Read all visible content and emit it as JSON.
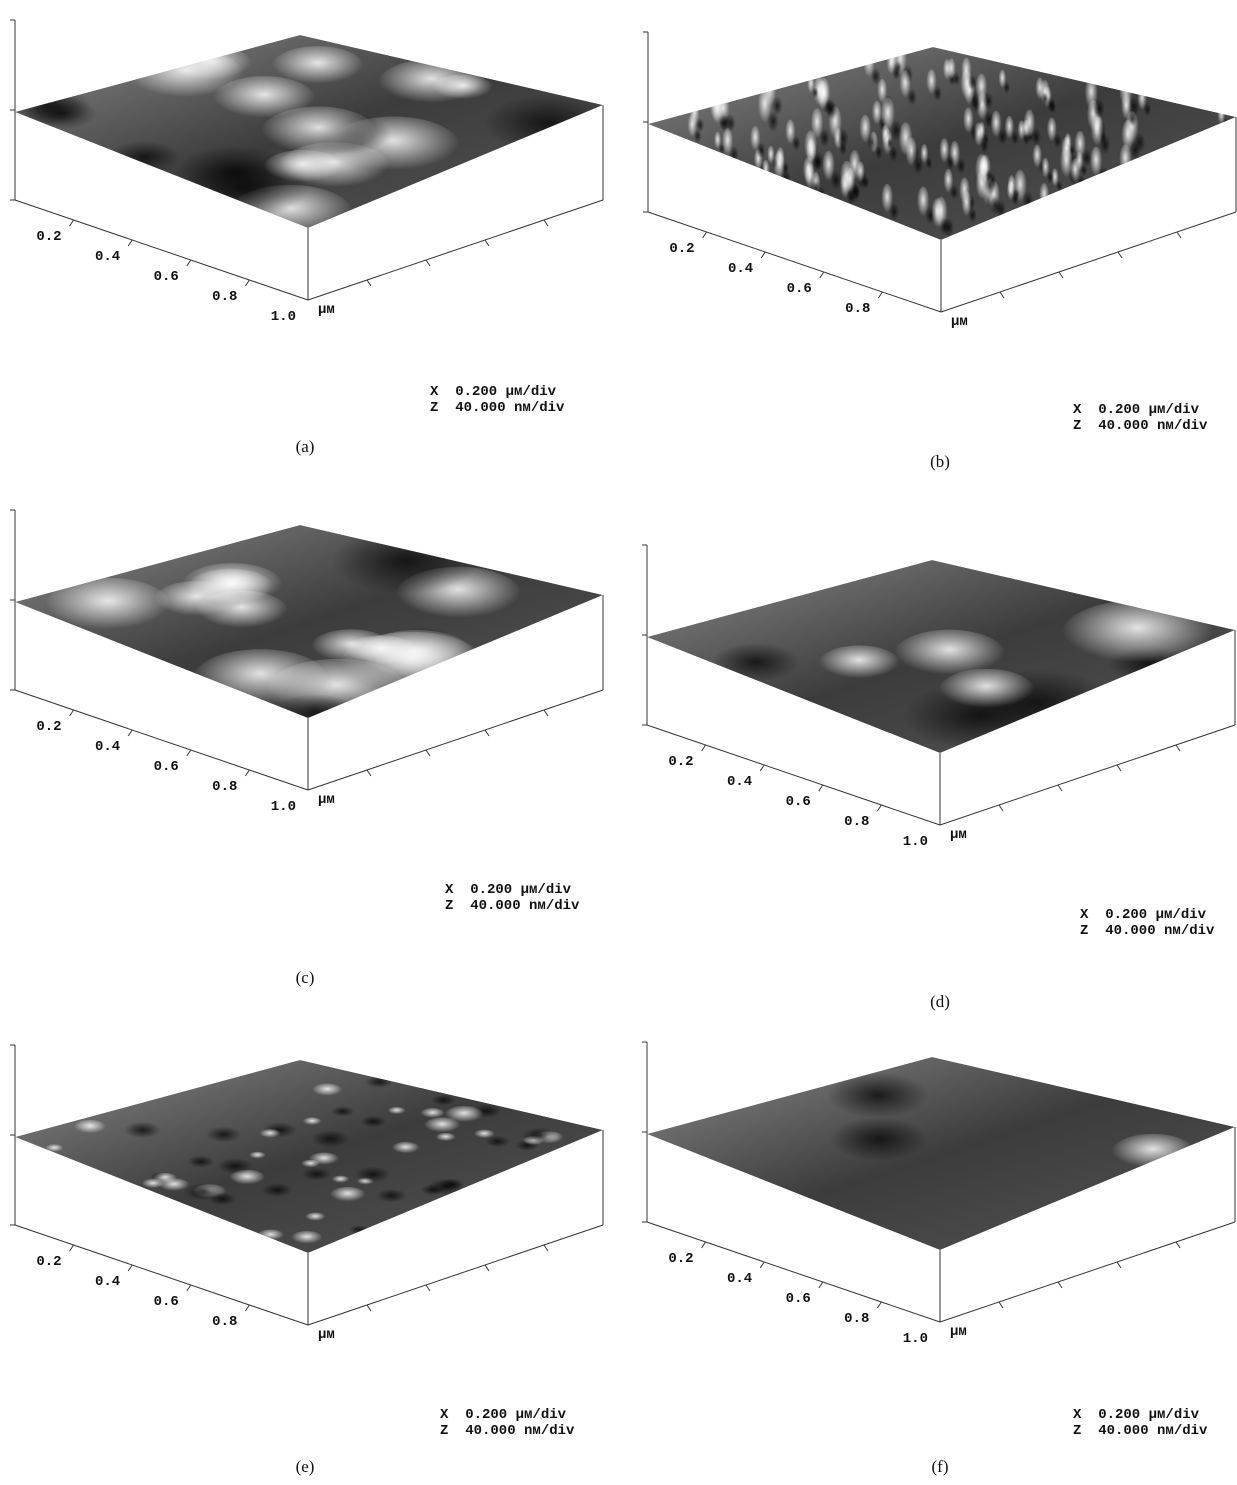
{
  "figure": {
    "panels": [
      {
        "caption": "(a)",
        "tick_labels": [
          "0.2",
          "0.4",
          "0.6",
          "0.8",
          "1.0"
        ],
        "unit": "μм",
        "scale": [
          "X  0.200 μм/div",
          "Z  40.000 nм/div"
        ]
      },
      {
        "caption": "(b)",
        "tick_labels": [
          "0.2",
          "0.4",
          "0.6",
          "0.8"
        ],
        "unit": "μм",
        "scale": [
          "X  0.200 μм/div",
          "Z  40.000 nм/div"
        ]
      },
      {
        "caption": "(c)",
        "tick_labels": [
          "0.2",
          "0.4",
          "0.6",
          "0.8",
          "1.0"
        ],
        "unit": "μм",
        "scale": [
          "X  0.200 μм/div",
          "Z  40.000 nм/div"
        ]
      },
      {
        "caption": "(d)",
        "tick_labels": [
          "0.2",
          "0.4",
          "0.6",
          "0.8",
          "1.0"
        ],
        "unit": "μм",
        "scale": [
          "X  0.200 μм/div",
          "Z  40.000 nм/div"
        ]
      },
      {
        "caption": "(e)",
        "tick_labels": [
          "0.2",
          "0.4",
          "0.6",
          "0.8"
        ],
        "unit": "μм",
        "scale": [
          "X  0.200 μм/div",
          "Z  40.000 nм/div"
        ]
      },
      {
        "caption": "(f)",
        "tick_labels": [
          "0.2",
          "0.4",
          "0.6",
          "0.8",
          "1.0"
        ],
        "unit": "μм",
        "scale": [
          "X  0.200 μм/div",
          "Z  40.000 nм/div"
        ]
      }
    ]
  }
}
